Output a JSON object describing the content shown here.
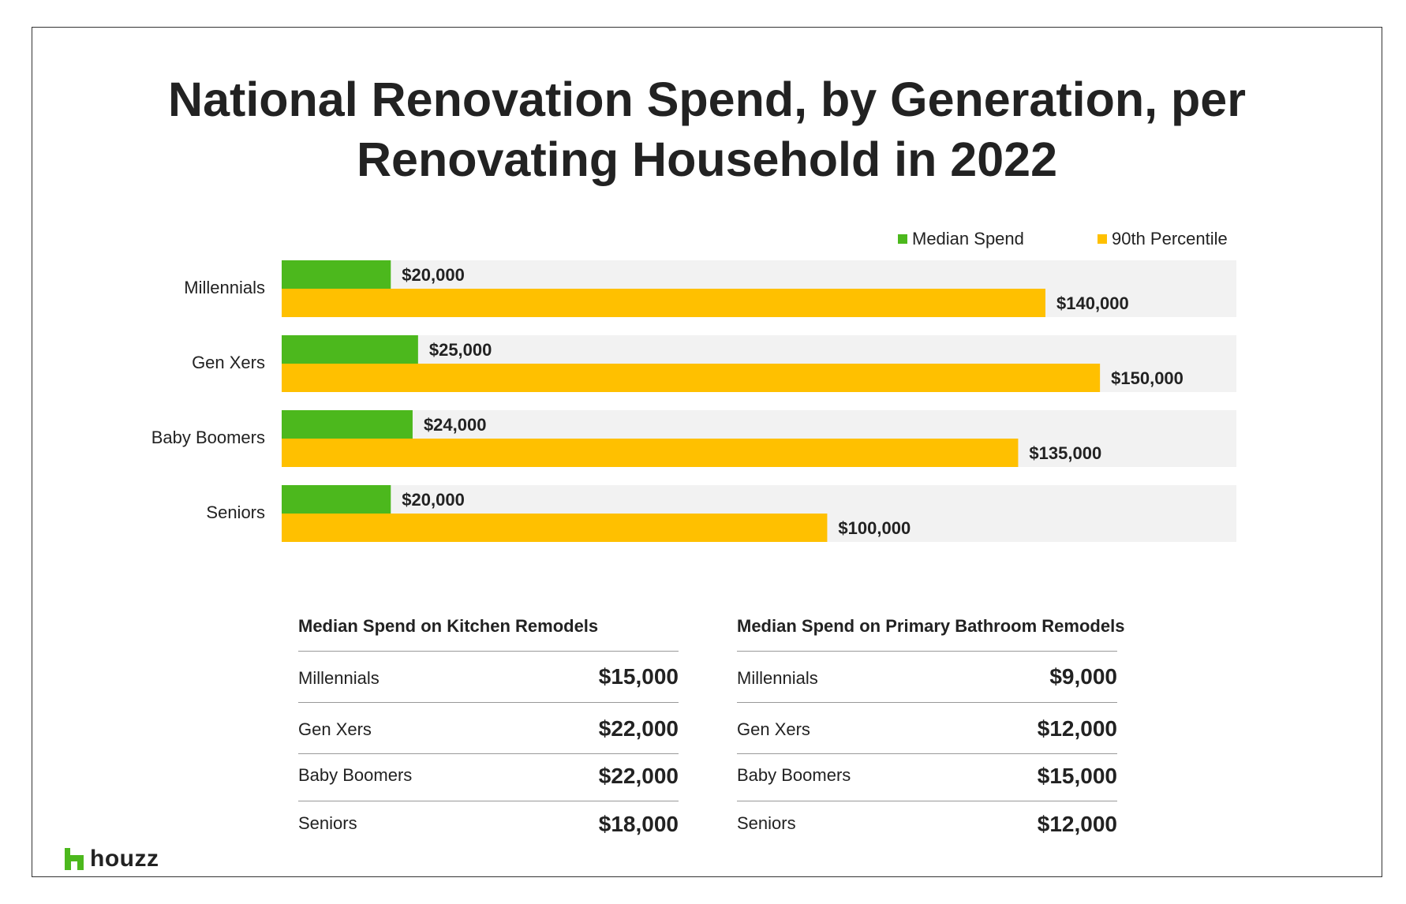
{
  "title_line1": "National Renovation Spend, by Generation, per",
  "title_line2": "Renovating Household in 2022",
  "colors": {
    "median": "#4cb81d",
    "p90": "#ffc000",
    "track": "#f2f2f2"
  },
  "chart_data": {
    "type": "bar",
    "orientation": "horizontal",
    "categories": [
      "Millennials",
      "Gen Xers",
      "Baby Boomers",
      "Seniors"
    ],
    "series": [
      {
        "name": "Median Spend",
        "values": [
          20000,
          25000,
          24000,
          20000
        ],
        "labels": [
          "$20,000",
          "$25,000",
          "$24,000",
          "$20,000"
        ]
      },
      {
        "name": "90th Percentile",
        "values": [
          140000,
          150000,
          135000,
          100000
        ],
        "labels": [
          "$140,000",
          "$150,000",
          "$135,000",
          "$100,000"
        ]
      }
    ],
    "xlim": [
      0,
      175000
    ],
    "legend_position": "top-right",
    "grid": false
  },
  "tables": [
    {
      "title": "Median Spend on Kitchen Remodels",
      "rows": [
        {
          "label": "Millennials",
          "value": "$15,000"
        },
        {
          "label": "Gen Xers",
          "value": "$22,000"
        },
        {
          "label": "Baby Boomers",
          "value": "$22,000"
        },
        {
          "label": "Seniors",
          "value": "$18,000"
        }
      ]
    },
    {
      "title": "Median Spend on Primary Bathroom Remodels",
      "rows": [
        {
          "label": "Millennials",
          "value": "$9,000"
        },
        {
          "label": "Gen Xers",
          "value": "$12,000"
        },
        {
          "label": "Baby Boomers",
          "value": "$15,000"
        },
        {
          "label": "Seniors",
          "value": "$12,000"
        }
      ]
    }
  ],
  "logo_text": "houzz"
}
